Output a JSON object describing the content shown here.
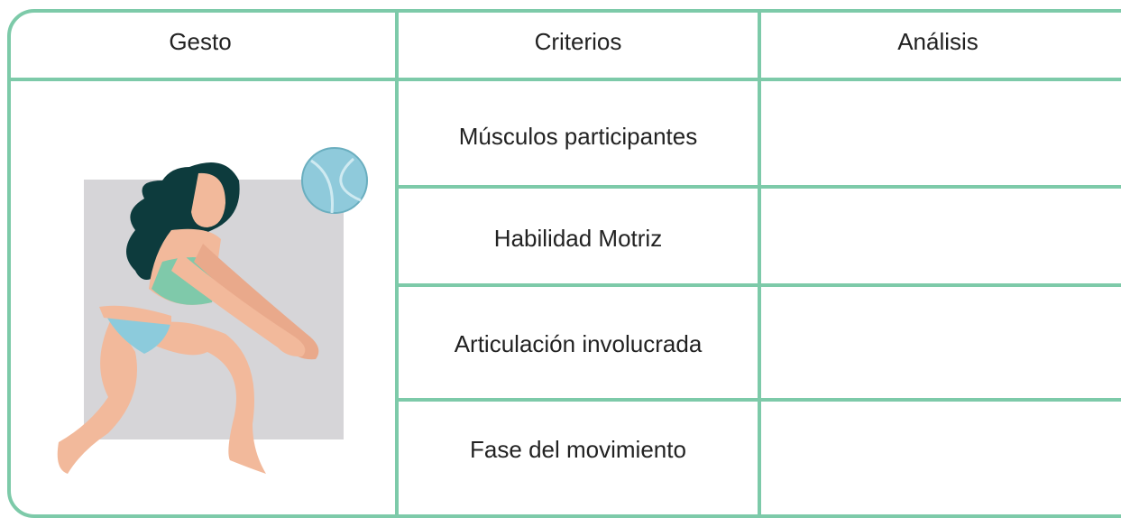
{
  "table": {
    "header": [
      "Gesto",
      "Criterios",
      "Análisis"
    ],
    "criteria": [
      "Músculos participantes",
      "Habilidad Motriz",
      "Articulación involucrada",
      "Fase del movimiento"
    ]
  }
}
